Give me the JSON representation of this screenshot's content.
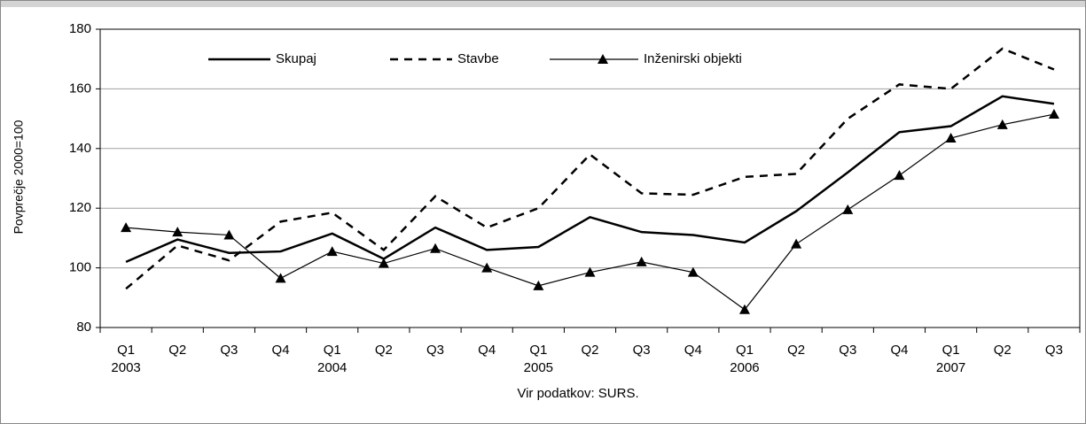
{
  "chart_data": {
    "type": "line",
    "y_label": "Povprečje 2000=100",
    "source": "Vir podatkov: SURS.",
    "categories": [
      "Q1",
      "Q2",
      "Q3",
      "Q4",
      "Q1",
      "Q2",
      "Q3",
      "Q4",
      "Q1",
      "Q2",
      "Q3",
      "Q4",
      "Q1",
      "Q2",
      "Q3",
      "Q4",
      "Q1",
      "Q2",
      "Q3"
    ],
    "year_labels": [
      "2003",
      null,
      null,
      null,
      "2004",
      null,
      null,
      null,
      "2005",
      null,
      null,
      null,
      "2006",
      null,
      null,
      null,
      "2007",
      null,
      null
    ],
    "series": [
      {
        "name": "Skupaj",
        "color": "#000000",
        "style": "solid",
        "values": [
          102,
          109.5,
          105,
          105.5,
          111.5,
          103,
          113.5,
          106,
          107,
          117,
          112,
          111,
          108.5,
          119,
          132,
          145.5,
          147.5,
          157.5,
          155
        ]
      },
      {
        "name": "Stavbe",
        "color": "#000000",
        "style": "dashed",
        "values": [
          93,
          107.5,
          102.5,
          115.5,
          118.5,
          106,
          124,
          113.5,
          120,
          138,
          125,
          124.5,
          130.5,
          131.5,
          150,
          161.5,
          160,
          173.5,
          166.5
        ]
      },
      {
        "name": "Inženirski objekti",
        "color": "#000000",
        "style": "thin-triangle",
        "values": [
          113.5,
          112,
          111,
          96.5,
          105.5,
          101.5,
          106.5,
          100,
          94,
          98.5,
          102,
          98.5,
          86,
          108,
          119.5,
          131,
          143.5,
          148,
          151.5
        ]
      }
    ],
    "ylim": [
      80,
      180
    ],
    "yticks": [
      80,
      100,
      120,
      140,
      160,
      180
    ],
    "grid": true
  }
}
